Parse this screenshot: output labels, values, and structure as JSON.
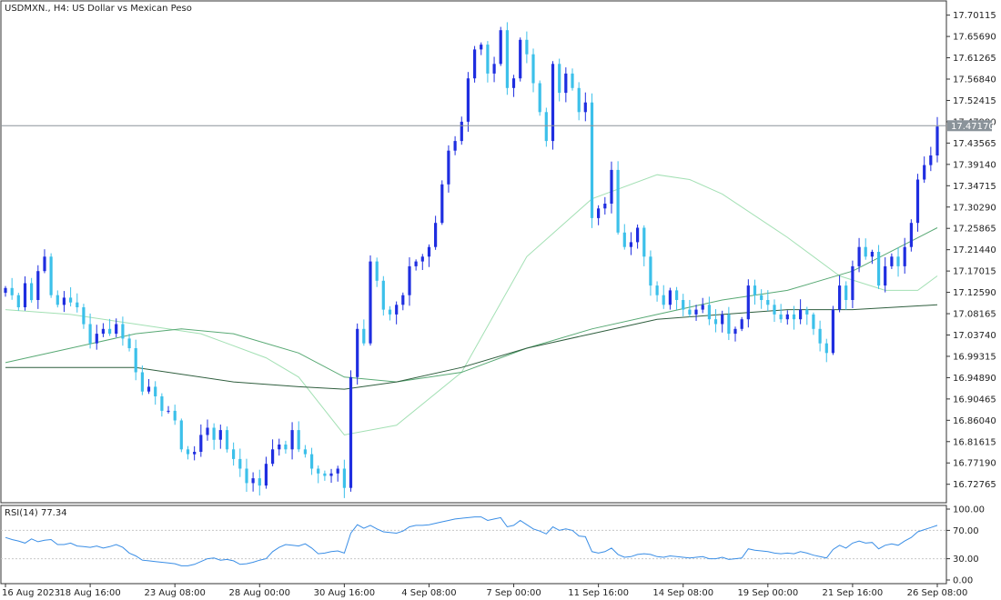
{
  "chart_data": {
    "type": "candlestick",
    "title": "USDMXN., H4:  US Dollar vs Mexican Peso",
    "symbol": "USDMXN.",
    "timeframe": "H4",
    "instrument_name": "US Dollar vs Mexican Peso",
    "price_axis_ticks": [
      "17.70115",
      "17.65690",
      "17.61265",
      "17.56840",
      "17.52415",
      "17.47990",
      "17.43565",
      "17.39140",
      "17.34715",
      "17.30290",
      "17.25865",
      "17.21440",
      "17.17015",
      "17.12590",
      "17.08165",
      "17.03740",
      "16.99315",
      "16.94890",
      "16.90465",
      "16.86040",
      "16.81615",
      "16.77190",
      "16.72765"
    ],
    "current_price": "17.47170",
    "current_price_value": 17.4717,
    "price_range": [
      16.695,
      17.725
    ],
    "time_axis_labels": [
      "16 Aug 2023",
      "18 Aug 16:00",
      "23 Aug 08:00",
      "28 Aug 00:00",
      "30 Aug 16:00",
      "4 Sep 08:00",
      "7 Sep 00:00",
      "11 Sep 16:00",
      "14 Sep 08:00",
      "19 Sep 00:00",
      "21 Sep 16:00",
      "26 Sep 08:00"
    ],
    "candles_close": [
      17.135,
      17.12,
      17.095,
      17.145,
      17.11,
      17.17,
      17.2,
      17.12,
      17.1,
      17.115,
      17.105,
      17.095,
      17.06,
      17.02,
      17.04,
      17.05,
      17.04,
      17.06,
      17.03,
      17.01,
      16.96,
      16.92,
      16.93,
      16.91,
      16.88,
      16.88,
      16.86,
      16.8,
      16.79,
      16.795,
      16.83,
      16.845,
      16.82,
      16.84,
      16.8,
      16.78,
      16.76,
      16.73,
      16.74,
      16.725,
      16.77,
      16.8,
      16.81,
      16.8,
      16.84,
      16.8,
      16.79,
      16.76,
      16.75,
      16.745,
      16.75,
      16.76,
      16.72,
      16.95,
      17.05,
      17.02,
      17.19,
      17.15,
      17.09,
      17.08,
      17.1,
      17.12,
      17.18,
      17.19,
      17.2,
      17.22,
      17.27,
      17.35,
      17.42,
      17.44,
      17.48,
      17.57,
      17.63,
      17.64,
      17.58,
      17.6,
      17.67,
      17.55,
      17.57,
      17.65,
      17.62,
      17.56,
      17.5,
      17.44,
      17.6,
      17.54,
      17.58,
      17.55,
      17.5,
      17.52,
      17.28,
      17.3,
      17.31,
      17.38,
      17.25,
      17.22,
      17.23,
      17.26,
      17.2,
      17.14,
      17.12,
      17.1,
      17.13,
      17.11,
      17.09,
      17.08,
      17.09,
      17.1,
      17.07,
      17.06,
      17.08,
      17.04,
      17.05,
      17.07,
      17.14,
      17.12,
      17.11,
      17.1,
      17.08,
      17.07,
      17.08,
      17.07,
      17.09,
      17.08,
      17.05,
      17.02,
      17.0,
      17.09,
      17.14,
      17.11,
      17.18,
      17.22,
      17.2,
      17.21,
      17.14,
      17.18,
      17.2,
      17.18,
      17.22,
      17.27,
      17.36,
      17.39,
      17.41,
      17.47
    ],
    "moving_averages": [
      {
        "color": "#a3e0b4",
        "points": [
          [
            0,
            17.09
          ],
          [
            10,
            17.08
          ],
          [
            20,
            17.06
          ],
          [
            30,
            17.04
          ],
          [
            40,
            16.99
          ],
          [
            45,
            16.95
          ],
          [
            52,
            16.83
          ],
          [
            60,
            16.85
          ],
          [
            70,
            16.96
          ],
          [
            80,
            17.2
          ],
          [
            90,
            17.32
          ],
          [
            100,
            17.37
          ],
          [
            105,
            17.36
          ],
          [
            110,
            17.33
          ],
          [
            120,
            17.24
          ],
          [
            128,
            17.16
          ],
          [
            135,
            17.13
          ],
          [
            140,
            17.13
          ],
          [
            143,
            17.16
          ]
        ]
      },
      {
        "color": "#58a974",
        "points": [
          [
            0,
            16.98
          ],
          [
            10,
            17.01
          ],
          [
            20,
            17.04
          ],
          [
            27,
            17.05
          ],
          [
            35,
            17.04
          ],
          [
            45,
            17.0
          ],
          [
            52,
            16.95
          ],
          [
            60,
            16.94
          ],
          [
            70,
            16.96
          ],
          [
            80,
            17.01
          ],
          [
            90,
            17.05
          ],
          [
            100,
            17.08
          ],
          [
            110,
            17.11
          ],
          [
            120,
            17.13
          ],
          [
            130,
            17.17
          ],
          [
            143,
            17.26
          ]
        ]
      },
      {
        "color": "#2f5e3e",
        "points": [
          [
            0,
            16.97
          ],
          [
            20,
            16.97
          ],
          [
            35,
            16.94
          ],
          [
            45,
            16.93
          ],
          [
            52,
            16.925
          ],
          [
            60,
            16.94
          ],
          [
            70,
            16.97
          ],
          [
            80,
            17.01
          ],
          [
            90,
            17.04
          ],
          [
            100,
            17.07
          ],
          [
            110,
            17.08
          ],
          [
            120,
            17.09
          ],
          [
            130,
            17.09
          ],
          [
            143,
            17.1
          ]
        ]
      }
    ],
    "rsi": {
      "label": "RSI(14) 77.34",
      "period": 14,
      "current": 77.34,
      "axis_ticks": [
        "100.00",
        "70.00",
        "30.00",
        "0.00"
      ],
      "levels": [
        70,
        30
      ],
      "values": [
        60,
        57,
        55,
        52,
        58,
        54,
        56,
        57,
        50,
        50,
        52,
        48,
        47,
        46,
        48,
        45,
        47,
        50,
        46,
        38,
        34,
        28,
        27,
        26,
        25,
        24,
        23,
        20,
        20,
        22,
        26,
        30,
        31,
        28,
        29,
        27,
        22,
        23,
        25,
        28,
        30,
        40,
        46,
        50,
        49,
        48,
        51,
        45,
        37,
        38,
        40,
        41,
        38,
        66,
        78,
        73,
        77,
        72,
        68,
        67,
        66,
        69,
        75,
        77,
        77,
        78,
        80,
        82,
        84,
        86,
        87,
        88,
        89,
        89,
        84,
        86,
        88,
        75,
        77,
        84,
        78,
        72,
        69,
        65,
        75,
        70,
        72,
        70,
        62,
        61,
        40,
        38,
        40,
        45,
        36,
        32,
        33,
        36,
        37,
        36,
        33,
        32,
        34,
        33,
        32,
        31,
        32,
        33,
        30,
        30,
        32,
        29,
        30,
        31,
        44,
        42,
        41,
        40,
        38,
        37,
        38,
        37,
        40,
        38,
        35,
        33,
        31,
        43,
        49,
        45,
        52,
        55,
        52,
        53,
        44,
        49,
        51,
        49,
        55,
        60,
        68,
        71,
        74,
        77
      ]
    }
  }
}
